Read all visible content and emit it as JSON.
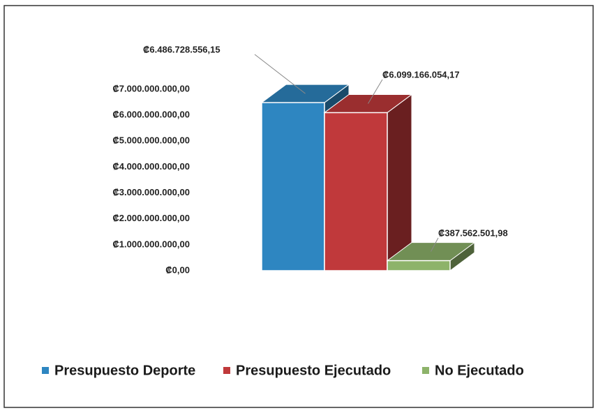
{
  "chart_data": {
    "type": "bar",
    "series": [
      {
        "name": "Presupuesto Deporte",
        "color": "#2e86c1",
        "values": [
          6486728556.15
        ],
        "value_labels": [
          "₡6.486.728.556,15"
        ]
      },
      {
        "name": "Presupuesto Ejecutado",
        "color": "#c0393b",
        "values": [
          6099166054.17
        ],
        "value_labels": [
          "₡6.099.166.054,17"
        ]
      },
      {
        "name": "No Ejecutado",
        "color": "#8db36a",
        "values": [
          387562501.98
        ],
        "value_labels": [
          "₡387.562.501,98"
        ]
      }
    ],
    "ylim": [
      0,
      7000000000
    ],
    "yticks": [
      {
        "value": 0,
        "label": "₡0,00"
      },
      {
        "value": 1000000000,
        "label": "₡1.000.000.000,00"
      },
      {
        "value": 2000000000,
        "label": "₡2.000.000.000,00"
      },
      {
        "value": 3000000000,
        "label": "₡3.000.000.000,00"
      },
      {
        "value": 4000000000,
        "label": "₡4.000.000.000,00"
      },
      {
        "value": 5000000000,
        "label": "₡5.000.000.000,00"
      },
      {
        "value": 6000000000,
        "label": "₡6.000.000.000,00"
      },
      {
        "value": 7000000000,
        "label": "₡7.000.000.000,00"
      }
    ],
    "grid": false,
    "legend": "bottom"
  }
}
